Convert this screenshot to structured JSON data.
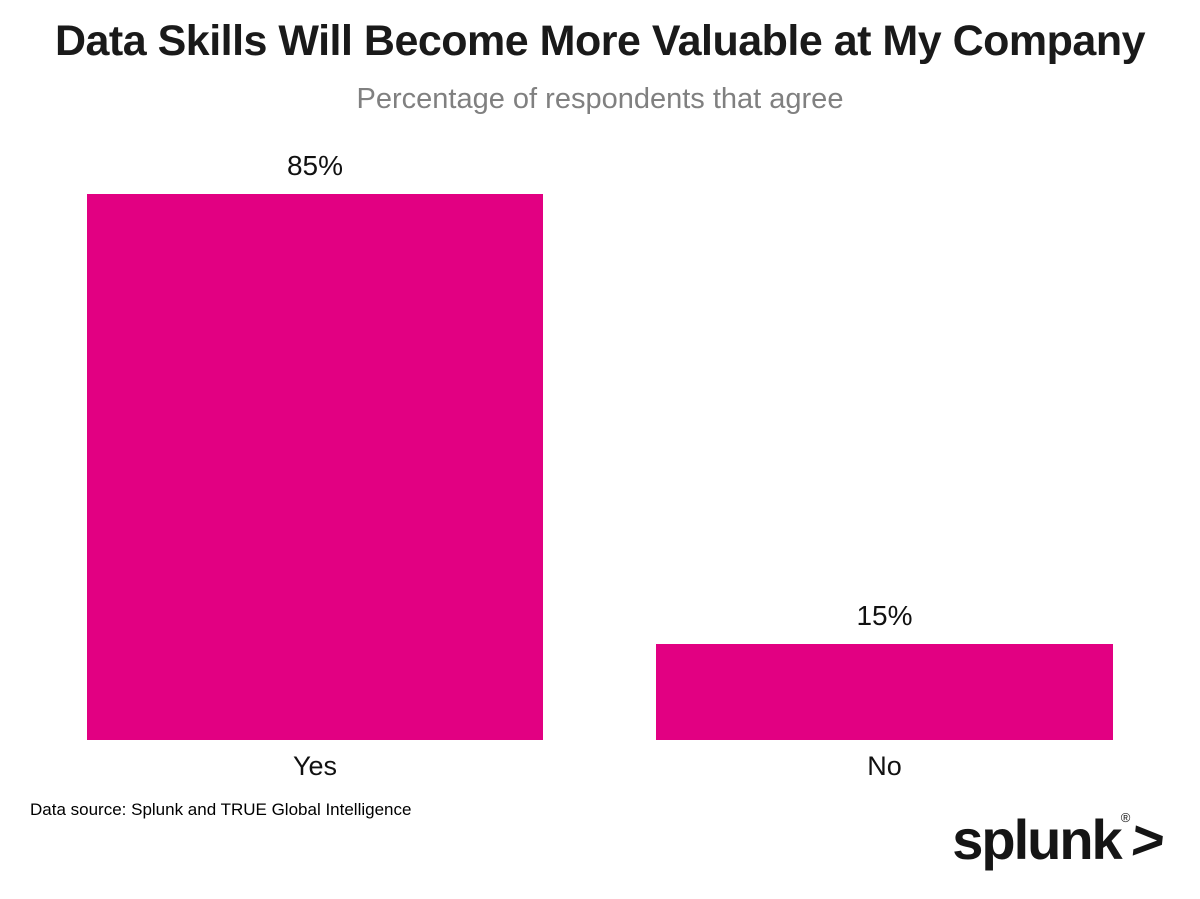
{
  "chart_data": {
    "type": "bar",
    "title": "Data Skills Will Become More Valuable at My Company",
    "subtitle": "Percentage of respondents that agree",
    "categories": [
      "Yes",
      "No"
    ],
    "values": [
      85,
      15
    ],
    "value_labels": [
      "85%",
      "15%"
    ],
    "xlabel": "",
    "ylabel": "",
    "ylim": [
      0,
      93
    ],
    "grid": false,
    "legend": false,
    "orientation": "vertical",
    "bar_color": "#e20082"
  },
  "colors": {
    "bar": "#e20082",
    "title": "#1a1a1a",
    "subtitle": "#808080",
    "text": "#111111"
  },
  "footer": {
    "source": "Data source: Splunk and TRUE Global Intelligence",
    "logo_text": "splunk",
    "logo_reg": "®",
    "logo_mark": ">"
  }
}
